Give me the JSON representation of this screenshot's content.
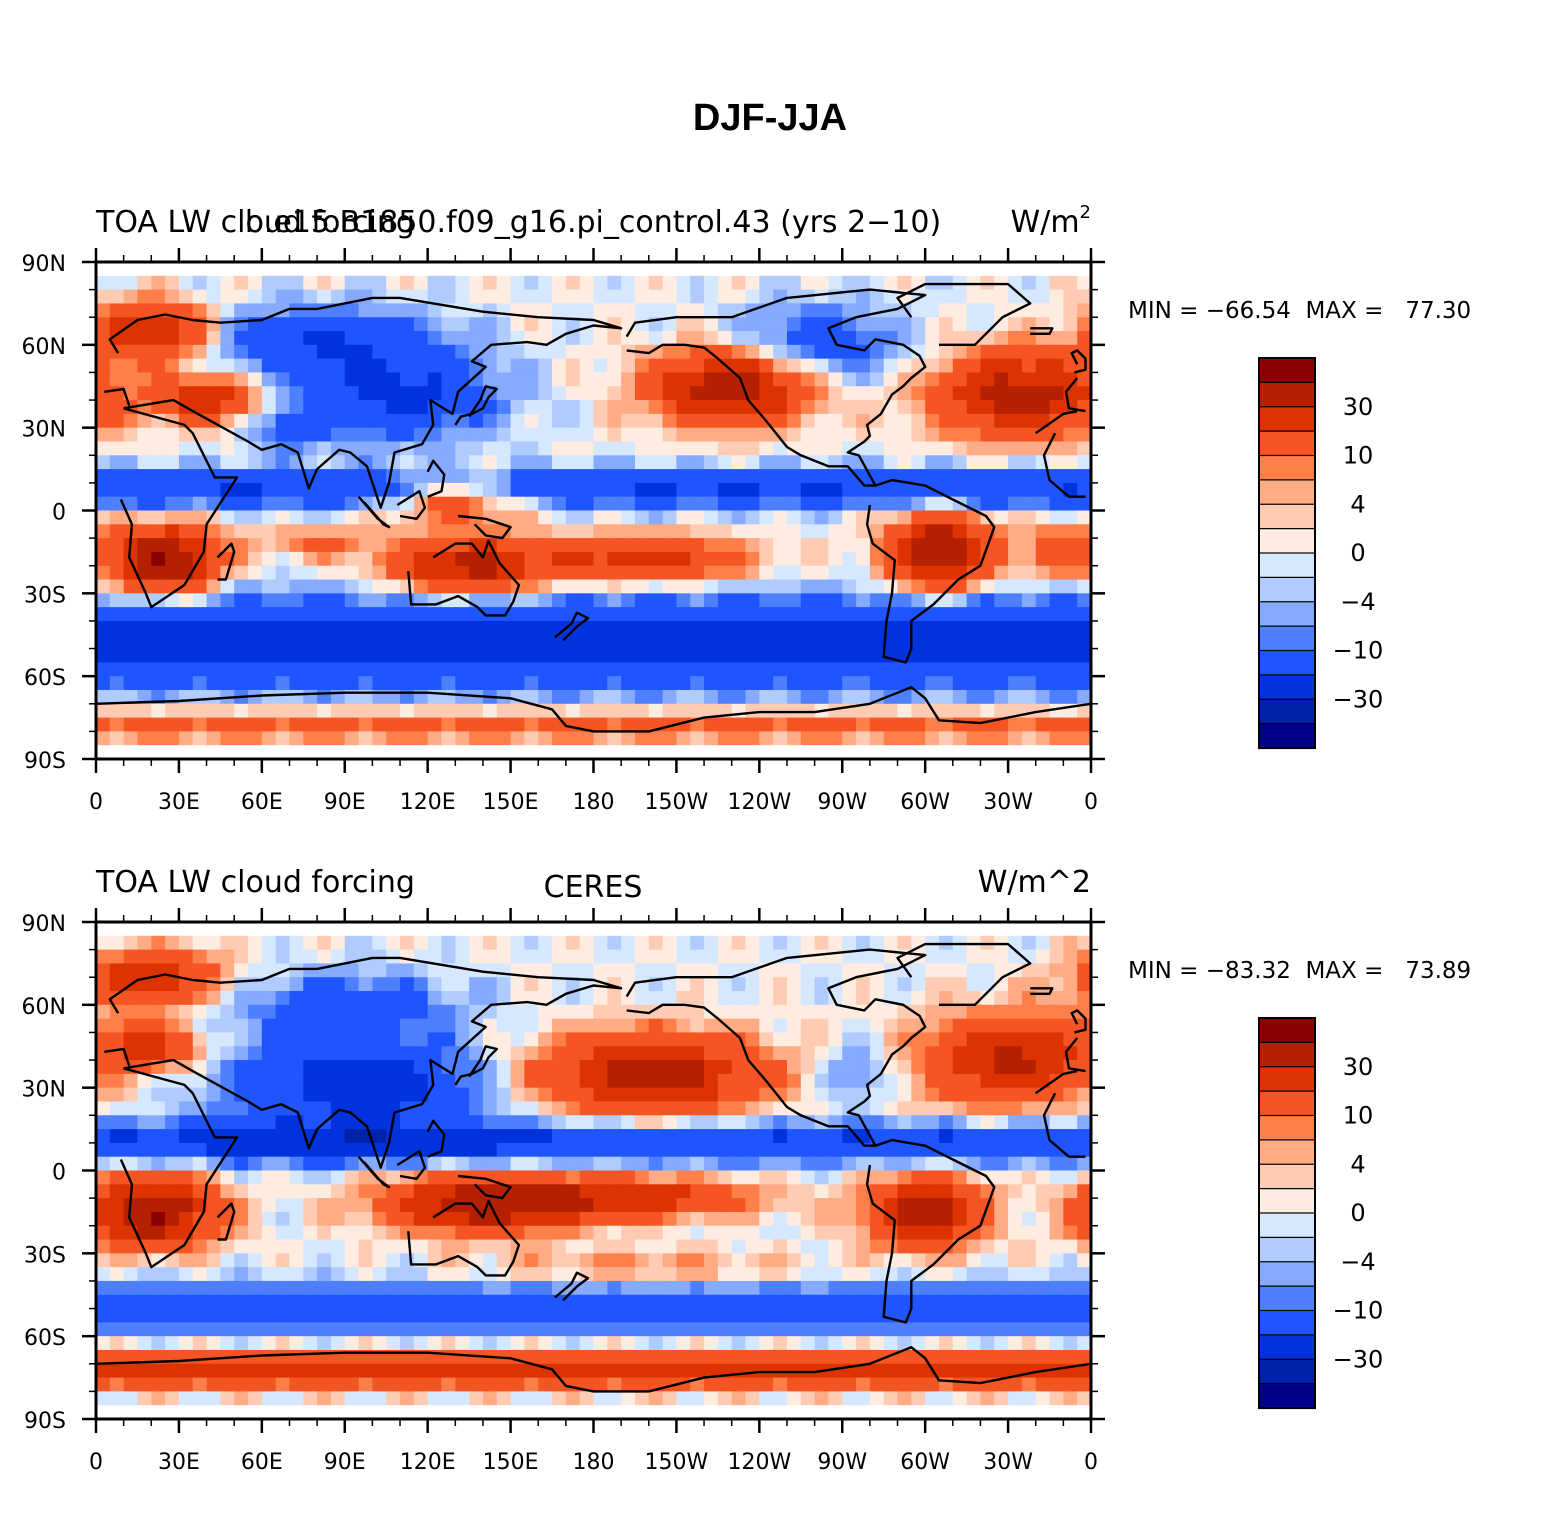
{
  "page": {
    "title": "DJF-JJA"
  },
  "panels": [
    {
      "id": "model",
      "left_title": "TOA LW cloud forcing",
      "center_title": "b.e15.B1850.f09_g16.pi_control.43 (yrs 2−10)",
      "right_title": "W/m",
      "right_title_sup": "2",
      "stats": "MIN = −66.54  MAX =   77.30",
      "field_description": "model"
    },
    {
      "id": "obs",
      "left_title": "TOA LW cloud forcing",
      "center_title": "CERES",
      "right_title": "W/m^2",
      "right_title_sup": "",
      "stats": "MIN = −83.32  MAX =   73.89",
      "field_description": "observations"
    }
  ],
  "axes": {
    "lat_ticks": [
      "90N",
      "60N",
      "30N",
      "0",
      "30S",
      "60S",
      "90S"
    ],
    "lon_ticks": [
      "0",
      "30E",
      "60E",
      "90E",
      "120E",
      "150E",
      "180",
      "150W",
      "120W",
      "90W",
      "60W",
      "30W",
      "0"
    ]
  },
  "colorbar": {
    "labels": [
      "30",
      "10",
      "4",
      "0",
      "−4",
      "−10",
      "−30"
    ],
    "colors": [
      "#8b0000",
      "#b52000",
      "#dd3300",
      "#f55522",
      "#ff7f4a",
      "#ffab85",
      "#ffccb3",
      "#ffece0",
      "#d6e8ff",
      "#b0ccff",
      "#85aaff",
      "#4d7fff",
      "#1f55ff",
      "#0033dd",
      "#0022aa",
      "#000088"
    ]
  },
  "chart_data": {
    "type": "heatmap",
    "title": "DJF-JJA",
    "variable": "TOA LW cloud forcing",
    "units": "W/m^2",
    "x_range": [
      0,
      360
    ],
    "y_range": [
      -90,
      90
    ],
    "contour_levels": [
      -45,
      -30,
      -20,
      -10,
      -7,
      -4,
      -2,
      0,
      2,
      4,
      7,
      10,
      20,
      30,
      45
    ],
    "panels": [
      {
        "name": "b.e15.B1850.f09_g16.pi_control.43 (yrs 2−10)",
        "min": -66.54,
        "max": 77.3
      },
      {
        "name": "CERES",
        "min": -83.32,
        "max": 73.89
      }
    ]
  }
}
